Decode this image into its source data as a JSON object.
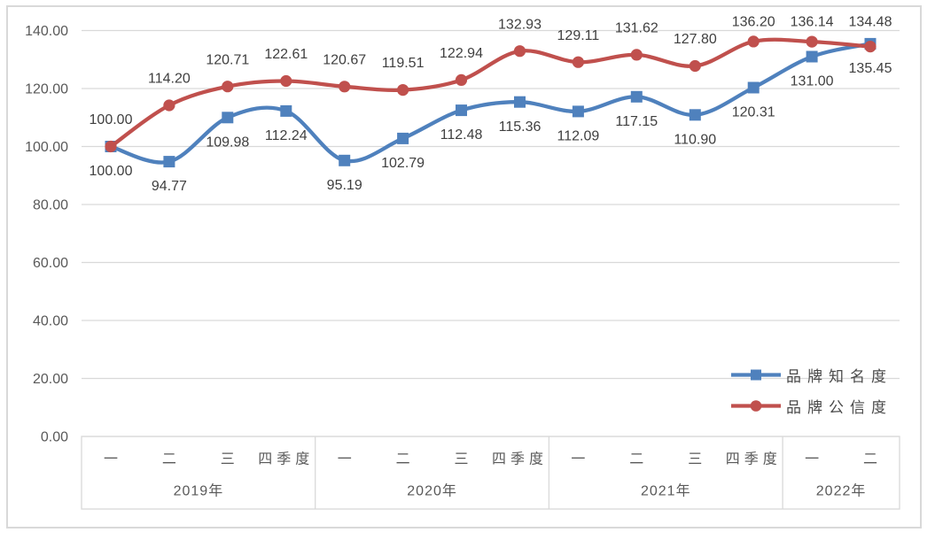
{
  "chart_data": {
    "type": "line",
    "title": "",
    "grid": true,
    "legend_position": "lower-right",
    "ylim": [
      0,
      140
    ],
    "ytick_step": 20,
    "ytick_decimals": 2,
    "ytick_labels": [
      "0.00",
      "20.00",
      "40.00",
      "60.00",
      "80.00",
      "100.00",
      "120.00",
      "140.00"
    ],
    "x_axis": {
      "years": [
        {
          "label": "2019年",
          "quarters": [
            "一",
            "二",
            "三",
            "四季度"
          ]
        },
        {
          "label": "2020年",
          "quarters": [
            "一",
            "二",
            "三",
            "四季度"
          ]
        },
        {
          "label": "2021年",
          "quarters": [
            "一",
            "二",
            "三",
            "四季度"
          ]
        },
        {
          "label": "2022年",
          "quarters": [
            "一",
            "二"
          ]
        }
      ]
    },
    "series": [
      {
        "name": "品牌知名度",
        "color": "#4F81BD",
        "marker": "square",
        "label_position": "below",
        "values": [
          100.0,
          94.77,
          109.98,
          112.24,
          95.19,
          102.79,
          112.48,
          115.36,
          112.09,
          117.15,
          110.9,
          120.31,
          131.0,
          135.45
        ]
      },
      {
        "name": "品牌公信度",
        "color": "#C0504D",
        "marker": "circle",
        "label_position": "above",
        "values": [
          100.0,
          114.2,
          120.71,
          122.61,
          120.67,
          119.51,
          122.94,
          132.93,
          129.11,
          131.62,
          127.8,
          136.2,
          136.14,
          134.48
        ]
      }
    ],
    "colors": {
      "gridline": "#d9d9d9",
      "axis_box_border": "#d9d9d9",
      "frame_border": "#d9d9d9",
      "axis_text": "#595959",
      "data_label_text": "#3f3f3f",
      "legend_text": "#4a4a4a"
    }
  }
}
